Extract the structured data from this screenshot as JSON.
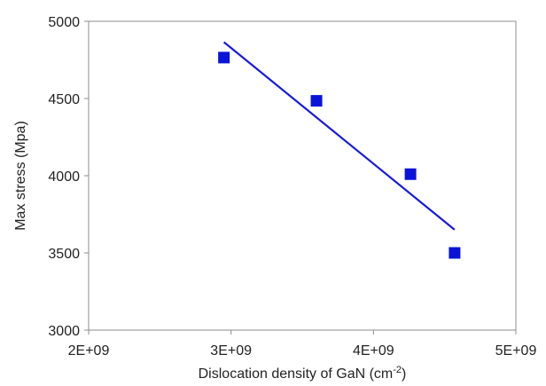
{
  "chart_data": {
    "type": "scatter",
    "title": "",
    "xlabel": "Dislocation density of GaN (cm",
    "xlabel_sup": "-2",
    "xlabel_close": ")",
    "ylabel": "Max stress (Mpa)",
    "xlim": [
      2000000000,
      5000000000
    ],
    "ylim": [
      3000,
      5000
    ],
    "xticks": [
      2000000000,
      3000000000,
      4000000000,
      5000000000
    ],
    "xtick_labels": [
      "2E+09",
      "3E+09",
      "4E+09",
      "5E+09"
    ],
    "yticks": [
      3000,
      3500,
      4000,
      4500,
      5000
    ],
    "ytick_labels": [
      "3000",
      "3500",
      "4000",
      "4500",
      "5000"
    ],
    "grid": false,
    "legend": "none",
    "series": [
      {
        "marker": "square",
        "color": "#0a14d9",
        "points": [
          {
            "x": 2950000000,
            "y": 4765
          },
          {
            "x": 3600000000,
            "y": 4485
          },
          {
            "x": 4260000000,
            "y": 4010
          },
          {
            "x": 4570000000,
            "y": 3500
          }
        ]
      }
    ],
    "trendline": {
      "type": "linear",
      "color": "#1a1adb",
      "from": {
        "x": 2950000000,
        "y": 4865
      },
      "to": {
        "x": 4570000000,
        "y": 3650
      }
    }
  }
}
